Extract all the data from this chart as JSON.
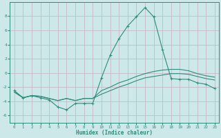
{
  "x": [
    0,
    1,
    2,
    3,
    4,
    5,
    6,
    7,
    8,
    9,
    10,
    11,
    12,
    13,
    14,
    15,
    16,
    17,
    18,
    19,
    20,
    21,
    22,
    23
  ],
  "line1": [
    -2.5,
    -3.5,
    -3.2,
    -3.5,
    -3.8,
    -4.8,
    -5.2,
    -4.3,
    -4.3,
    -4.3,
    -0.7,
    2.5,
    4.8,
    6.6,
    7.9,
    9.2,
    7.9,
    3.3,
    -0.8,
    -0.9,
    -0.9,
    -1.4,
    -1.6,
    -2.2
  ],
  "line2": [
    -2.7,
    -3.5,
    -3.2,
    -3.3,
    -3.6,
    -3.9,
    -3.6,
    -3.9,
    -3.6,
    -3.6,
    -3.0,
    -2.5,
    -2.0,
    -1.6,
    -1.1,
    -0.7,
    -0.5,
    -0.3,
    -0.1,
    -0.1,
    -0.2,
    -0.5,
    -0.8,
    -1.0
  ],
  "line3": [
    -2.7,
    -3.5,
    -3.2,
    -3.3,
    -3.6,
    -3.9,
    -3.6,
    -3.9,
    -3.6,
    -3.6,
    -2.5,
    -2.0,
    -1.4,
    -1.0,
    -0.5,
    -0.1,
    0.2,
    0.4,
    0.5,
    0.5,
    0.3,
    -0.1,
    -0.4,
    -0.6
  ],
  "line_color": "#2e8b7a",
  "bg_color": "#cce8e8",
  "grid_color": "#c8b8c8",
  "xlabel": "Humidex (Indice chaleur)",
  "ylim": [
    -7,
    10
  ],
  "xlim": [
    -0.5,
    23.5
  ],
  "yticks": [
    -6,
    -4,
    -2,
    0,
    2,
    4,
    6,
    8
  ],
  "xticks": [
    0,
    1,
    2,
    3,
    4,
    5,
    6,
    7,
    8,
    9,
    10,
    11,
    12,
    13,
    14,
    15,
    16,
    17,
    18,
    19,
    20,
    21,
    22,
    23
  ]
}
